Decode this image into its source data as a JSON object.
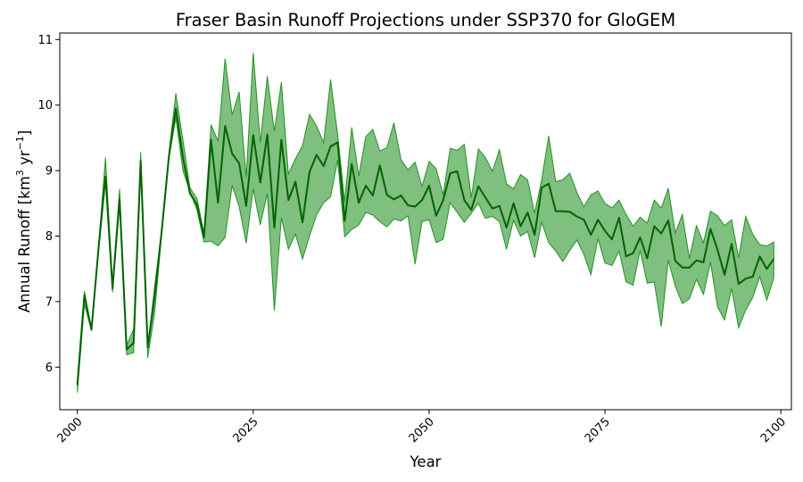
{
  "chart_data": {
    "type": "line",
    "title": "Fraser Basin Runoff Projections under SSP370 for GloGEM",
    "xlabel": "Year",
    "ylabel": "Annual Runoff [km",
    "ylabel_sup1": "3",
    "ylabel_mid": " yr",
    "ylabel_sup2": "−1",
    "ylabel_end": "]",
    "xlim": [
      1997.5,
      2101.5
    ],
    "ylim": [
      5.35,
      11.1
    ],
    "xticks": [
      2000,
      2025,
      2050,
      2075,
      2100
    ],
    "yticks": [
      6,
      7,
      8,
      9,
      10,
      11
    ],
    "grid": false,
    "colors": {
      "band": "#008000",
      "mean": "#006400"
    },
    "x": [
      2000,
      2001,
      2002,
      2003,
      2004,
      2005,
      2006,
      2007,
      2008,
      2009,
      2010,
      2011,
      2012,
      2013,
      2014,
      2015,
      2016,
      2017,
      2018,
      2019,
      2020,
      2021,
      2022,
      2023,
      2024,
      2025,
      2026,
      2027,
      2028,
      2029,
      2030,
      2031,
      2032,
      2033,
      2034,
      2035,
      2036,
      2037,
      2038,
      2039,
      2040,
      2041,
      2042,
      2043,
      2044,
      2045,
      2046,
      2047,
      2048,
      2049,
      2050,
      2051,
      2052,
      2053,
      2054,
      2055,
      2056,
      2057,
      2058,
      2059,
      2060,
      2061,
      2062,
      2063,
      2064,
      2065,
      2066,
      2067,
      2068,
      2069,
      2070,
      2071,
      2072,
      2073,
      2074,
      2075,
      2076,
      2077,
      2078,
      2079,
      2080,
      2081,
      2082,
      2083,
      2084,
      2085,
      2086,
      2087,
      2088,
      2089,
      2090,
      2091,
      2092,
      2093,
      2094,
      2095,
      2096,
      2097,
      2098,
      2099
    ],
    "series": [
      {
        "values": [
          5.73,
          7.1,
          6.57,
          7.8,
          8.91,
          7.2,
          8.57,
          6.27,
          6.37,
          9.15,
          6.3,
          7.1,
          8.09,
          9.2,
          9.95,
          9.2,
          8.65,
          8.48,
          7.98,
          9.47,
          8.51,
          9.68,
          9.26,
          9.11,
          8.46,
          9.54,
          8.82,
          9.55,
          8.13,
          9.47,
          8.55,
          8.83,
          8.21,
          8.98,
          9.24,
          9.07,
          9.37,
          9.43,
          8.23,
          9.1,
          8.51,
          8.77,
          8.62,
          9.08,
          8.63,
          8.56,
          8.62,
          8.47,
          8.45,
          8.55,
          8.77,
          8.31,
          8.55,
          8.96,
          8.99,
          8.55,
          8.4,
          8.76,
          8.59,
          8.42,
          8.46,
          8.13,
          8.5,
          8.15,
          8.36,
          8.02,
          8.74,
          8.8,
          8.38,
          8.38,
          8.37,
          8.3,
          8.25,
          8.02,
          8.25,
          8.08,
          7.95,
          8.28,
          7.69,
          7.74,
          7.98,
          7.66,
          8.15,
          8.04,
          8.24,
          7.62,
          7.52,
          7.52,
          7.63,
          7.6,
          8.11,
          7.79,
          7.41,
          7.88,
          7.27,
          7.35,
          7.38,
          7.69,
          7.5,
          7.65
        ]
      }
    ],
    "band": {
      "lower": [
        5.61,
        6.96,
        6.56,
        7.79,
        8.86,
        7.14,
        8.52,
        6.19,
        6.22,
        9.12,
        6.14,
        6.84,
        8.05,
        9.18,
        9.81,
        9.0,
        8.68,
        8.4,
        7.91,
        7.92,
        7.85,
        7.98,
        8.77,
        8.45,
        7.89,
        8.72,
        8.17,
        8.65,
        6.86,
        8.28,
        7.8,
        8.03,
        7.65,
        8.0,
        8.32,
        8.51,
        8.6,
        9.16,
        7.99,
        8.1,
        8.17,
        8.36,
        8.32,
        8.22,
        8.14,
        8.26,
        8.23,
        8.31,
        7.57,
        8.22,
        8.25,
        7.9,
        7.95,
        8.51,
        8.36,
        8.21,
        8.35,
        8.5,
        8.27,
        8.3,
        8.22,
        7.8,
        8.24,
        8.0,
        8.07,
        7.67,
        8.21,
        7.9,
        7.77,
        7.61,
        7.78,
        7.94,
        7.72,
        7.41,
        7.96,
        7.59,
        7.55,
        7.77,
        7.3,
        7.25,
        7.78,
        7.28,
        7.3,
        6.62,
        7.63,
        7.23,
        6.97,
        7.04,
        7.34,
        7.11,
        7.6,
        6.92,
        6.72,
        7.2,
        6.6,
        6.87,
        7.06,
        7.38,
        7.02,
        7.36
      ],
      "upper": [
        5.78,
        7.16,
        6.58,
        7.85,
        9.2,
        7.27,
        8.72,
        6.33,
        6.58,
        9.28,
        6.3,
        7.25,
        8.11,
        9.26,
        10.18,
        9.47,
        8.74,
        8.57,
        8.05,
        9.7,
        9.45,
        10.71,
        9.85,
        10.2,
        8.9,
        10.8,
        9.43,
        10.44,
        9.6,
        10.35,
        8.95,
        9.18,
        9.38,
        9.86,
        9.68,
        9.43,
        10.39,
        9.55,
        8.53,
        9.66,
        8.92,
        9.52,
        9.63,
        9.3,
        9.35,
        9.73,
        9.17,
        9.01,
        9.13,
        8.76,
        9.14,
        9.03,
        8.63,
        9.34,
        9.31,
        9.4,
        8.59,
        9.33,
        9.2,
        8.99,
        9.32,
        8.8,
        8.72,
        8.94,
        8.86,
        8.35,
        8.86,
        9.53,
        8.83,
        8.86,
        8.96,
        8.67,
        8.45,
        8.63,
        8.69,
        8.5,
        8.43,
        8.55,
        8.33,
        8.15,
        8.29,
        8.2,
        8.55,
        8.43,
        8.73,
        8.05,
        8.33,
        7.66,
        8.16,
        7.9,
        8.38,
        8.31,
        8.16,
        8.25,
        7.67,
        8.3,
        8.03,
        7.87,
        7.85,
        7.91
      ]
    }
  }
}
